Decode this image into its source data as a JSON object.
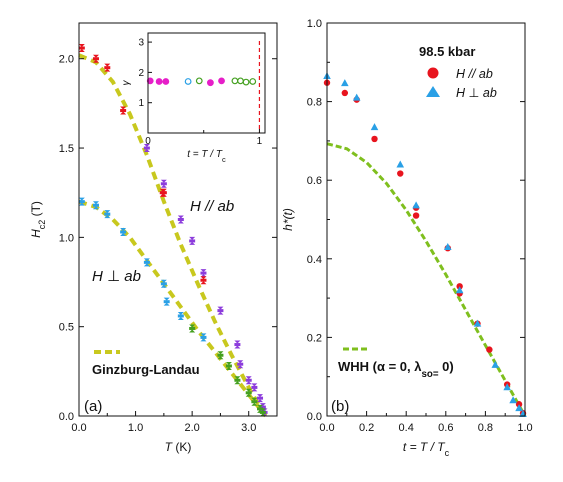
{
  "chart_data": [
    {
      "type": "scatter",
      "panel_label": "(a)",
      "xlabel": "T (K)",
      "ylabel": "H_c2 (T)",
      "xlim": [
        0,
        3.5
      ],
      "ylim": [
        0,
        2.2
      ],
      "xticks": [
        "0.0",
        "1.0",
        "2.0",
        "3.0"
      ],
      "yticks": [
        "0.0",
        "0.5",
        "1.0",
        "1.5",
        "2.0"
      ],
      "annotations": {
        "par_label": "H // ab",
        "perp_label": "H ⊥ ab"
      },
      "legend": {
        "label": "Ginzburg-Landau",
        "position": "bottom-left"
      },
      "fit_color": "#c8c81e",
      "series": [
        {
          "kind": "points",
          "group": "parallel",
          "points": [
            {
              "x": 0.05,
              "y": 2.06,
              "c": "#e8141e"
            },
            {
              "x": 0.3,
              "y": 2.0,
              "c": "#e8141e"
            },
            {
              "x": 0.5,
              "y": 1.95,
              "c": "#e8141e"
            },
            {
              "x": 0.78,
              "y": 1.71,
              "c": "#e8141e"
            },
            {
              "x": 1.2,
              "y": 1.5,
              "c": "#8c3cdc"
            },
            {
              "x": 1.48,
              "y": 1.25,
              "c": "#e8141e"
            },
            {
              "x": 1.5,
              "y": 1.3,
              "c": "#8c3cdc"
            },
            {
              "x": 1.5,
              "y": 1.25,
              "c": "#e8141e"
            },
            {
              "x": 1.8,
              "y": 1.1,
              "c": "#8c3cdc"
            },
            {
              "x": 2.0,
              "y": 0.98,
              "c": "#8c3cdc"
            },
            {
              "x": 2.2,
              "y": 0.8,
              "c": "#8c3cdc"
            },
            {
              "x": 2.2,
              "y": 0.76,
              "c": "#e8141e"
            },
            {
              "x": 2.5,
              "y": 0.59,
              "c": "#8c3cdc"
            },
            {
              "x": 2.8,
              "y": 0.4,
              "c": "#8c3cdc"
            },
            {
              "x": 2.85,
              "y": 0.29,
              "c": "#8c3cdc"
            },
            {
              "x": 3.0,
              "y": 0.2,
              "c": "#8c3cdc"
            },
            {
              "x": 3.1,
              "y": 0.16,
              "c": "#8c3cdc"
            },
            {
              "x": 3.2,
              "y": 0.1,
              "c": "#8c3cdc"
            },
            {
              "x": 3.25,
              "y": 0.05,
              "c": "#8c3cdc"
            },
            {
              "x": 3.28,
              "y": 0.02,
              "c": "#8c3cdc"
            }
          ]
        },
        {
          "kind": "points",
          "group": "perpendicular",
          "points": [
            {
              "x": 0.05,
              "y": 1.2,
              "c": "#2aa0e6"
            },
            {
              "x": 0.3,
              "y": 1.18,
              "c": "#2aa0e6"
            },
            {
              "x": 0.5,
              "y": 1.13,
              "c": "#2aa0e6"
            },
            {
              "x": 0.78,
              "y": 1.03,
              "c": "#2aa0e6"
            },
            {
              "x": 1.2,
              "y": 0.86,
              "c": "#2aa0e6"
            },
            {
              "x": 1.5,
              "y": 0.74,
              "c": "#2aa0e6"
            },
            {
              "x": 1.55,
              "y": 0.64,
              "c": "#2aa0e6"
            },
            {
              "x": 1.8,
              "y": 0.56,
              "c": "#2aa0e6"
            },
            {
              "x": 2.2,
              "y": 0.44,
              "c": "#2aa0e6"
            },
            {
              "x": 2.0,
              "y": 0.49,
              "c": "#44a020"
            },
            {
              "x": 2.5,
              "y": 0.34,
              "c": "#44a020"
            },
            {
              "x": 2.65,
              "y": 0.28,
              "c": "#44a020"
            },
            {
              "x": 2.8,
              "y": 0.2,
              "c": "#44a020"
            },
            {
              "x": 3.0,
              "y": 0.13,
              "c": "#44a020"
            },
            {
              "x": 3.1,
              "y": 0.08,
              "c": "#44a020"
            },
            {
              "x": 3.2,
              "y": 0.04,
              "c": "#44a020"
            },
            {
              "x": 3.25,
              "y": 0.02,
              "c": "#44a020"
            }
          ]
        },
        {
          "kind": "fit",
          "group": "parallel",
          "x": [
            0.0,
            0.3,
            0.6,
            0.9,
            1.2,
            1.5,
            1.8,
            2.1,
            2.4,
            2.7,
            3.0,
            3.2,
            3.3
          ],
          "y": [
            2.02,
            1.98,
            1.87,
            1.69,
            1.46,
            1.2,
            0.96,
            0.74,
            0.53,
            0.34,
            0.16,
            0.05,
            0.0
          ]
        },
        {
          "kind": "fit",
          "group": "perpendicular",
          "x": [
            0.0,
            0.3,
            0.6,
            0.9,
            1.2,
            1.5,
            1.8,
            2.1,
            2.4,
            2.7,
            3.0,
            3.2,
            3.3
          ],
          "y": [
            1.2,
            1.17,
            1.1,
            1.0,
            0.87,
            0.74,
            0.61,
            0.48,
            0.36,
            0.24,
            0.12,
            0.04,
            0.0
          ]
        }
      ],
      "inset": {
        "xlabel": "t = T / T_c",
        "ylabel": "γ",
        "xlim": [
          0,
          1.05
        ],
        "ylim": [
          0,
          3.3
        ],
        "xticks": [
          "0",
          "1"
        ],
        "yticks": [
          "1",
          "2",
          "3"
        ],
        "marker_line_color": "#e8141e",
        "points": [
          {
            "x": 0.02,
            "y": 1.72,
            "c": "#e61ec8",
            "filled": true
          },
          {
            "x": 0.1,
            "y": 1.7,
            "c": "#e61ec8",
            "filled": true
          },
          {
            "x": 0.16,
            "y": 1.7,
            "c": "#e61ec8",
            "filled": true
          },
          {
            "x": 0.36,
            "y": 1.7,
            "c": "#2aa0e6",
            "filled": false
          },
          {
            "x": 0.46,
            "y": 1.72,
            "c": "#44a020",
            "filled": false
          },
          {
            "x": 0.56,
            "y": 1.66,
            "c": "#e61ec8",
            "filled": true
          },
          {
            "x": 0.66,
            "y": 1.72,
            "c": "#e61ec8",
            "filled": true
          },
          {
            "x": 0.78,
            "y": 1.72,
            "c": "#44a020",
            "filled": false
          },
          {
            "x": 0.83,
            "y": 1.72,
            "c": "#44a020",
            "filled": false
          },
          {
            "x": 0.88,
            "y": 1.68,
            "c": "#44a020",
            "filled": false
          },
          {
            "x": 0.94,
            "y": 1.7,
            "c": "#44a020",
            "filled": false
          }
        ]
      }
    },
    {
      "type": "scatter",
      "panel_label": "(b)",
      "xlabel": "t = T / T_c",
      "ylabel": "h*(t)",
      "xlim": [
        0,
        1.0
      ],
      "ylim": [
        0,
        1.0
      ],
      "xticks": [
        "0.0",
        "0.2",
        "0.4",
        "0.6",
        "0.8",
        "1.0"
      ],
      "yticks": [
        "0.0",
        "0.2",
        "0.4",
        "0.6",
        "0.8",
        "1.0"
      ],
      "legend": {
        "title": "98.5 kbar",
        "entries": [
          "H // ab",
          "H ⊥ ab"
        ],
        "position": "top-right",
        "fit_label": "WHH (α = 0, λ_so= 0)",
        "fit_position": "bottom-left"
      },
      "series": [
        {
          "name": "H // ab",
          "marker": "circle",
          "color": "#e8141e",
          "x": [
            0.0,
            0.09,
            0.15,
            0.24,
            0.37,
            0.45,
            0.45,
            0.61,
            0.67,
            0.67,
            0.76,
            0.82,
            0.91,
            0.97,
            0.99
          ],
          "y": [
            0.848,
            0.822,
            0.805,
            0.705,
            0.617,
            0.53,
            0.51,
            0.427,
            0.33,
            0.312,
            0.235,
            0.169,
            0.08,
            0.03,
            0.007
          ]
        },
        {
          "name": "H ⊥ ab",
          "marker": "triangle",
          "color": "#2aa0e6",
          "x": [
            0.0,
            0.09,
            0.15,
            0.24,
            0.37,
            0.45,
            0.61,
            0.67,
            0.76,
            0.85,
            0.91,
            0.94,
            0.97,
            0.99
          ],
          "y": [
            0.865,
            0.847,
            0.81,
            0.735,
            0.64,
            0.536,
            0.43,
            0.32,
            0.235,
            0.13,
            0.073,
            0.04,
            0.02,
            0.005
          ]
        },
        {
          "name": "WHH (α = 0, λ_so= 0)",
          "kind": "fit",
          "color": "#7fbf1e",
          "x": [
            0.0,
            0.1,
            0.2,
            0.3,
            0.4,
            0.5,
            0.6,
            0.7,
            0.8,
            0.9,
            1.0
          ],
          "y": [
            0.693,
            0.68,
            0.645,
            0.592,
            0.524,
            0.445,
            0.36,
            0.27,
            0.18,
            0.09,
            0.0
          ]
        }
      ]
    }
  ]
}
